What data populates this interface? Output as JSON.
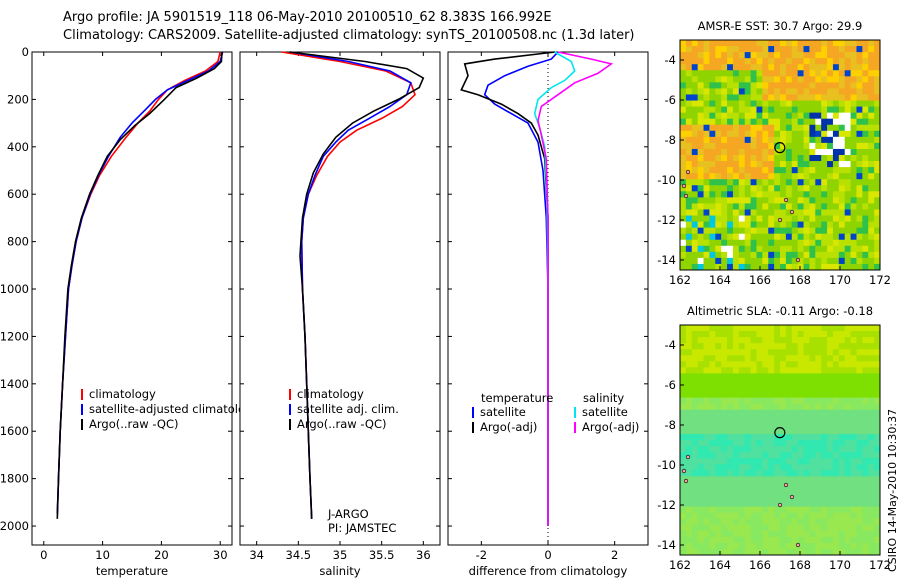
{
  "header": {
    "line1": "Argo profile: JA 5901519_118 06-May-2010 20100510_62 8.383S 166.992E",
    "line2": "Climatology: CARS2009. Satellite-adjusted climatology: synTS_20100508.nc (1.3d later)"
  },
  "credit": "CSIRO 14-May-2010 10:30:37",
  "colors": {
    "climatology": "#ff0000",
    "satellite": "#0000ff",
    "argo": "#000000",
    "sat_diff": "#00e5ee",
    "argo_adj": "#ff00ff"
  },
  "chart_data": [
    {
      "type": "line",
      "xlabel": "temperature",
      "ylabel": "",
      "xlim": [
        -2,
        32
      ],
      "ylim": [
        2080,
        0
      ],
      "y_reversed": true,
      "xticks": [
        0,
        10,
        20,
        30
      ],
      "yticks": [
        0,
        200,
        400,
        600,
        800,
        1000,
        1200,
        1400,
        1600,
        1800,
        2000
      ],
      "legend": [
        "climatology",
        "satellite-adjusted climatology",
        "Argo(..raw -QC)"
      ],
      "series": [
        {
          "name": "climatology",
          "color": "#ff0000",
          "points": [
            [
              30.0,
              0
            ],
            [
              29.6,
              40
            ],
            [
              27.5,
              80
            ],
            [
              24,
              120
            ],
            [
              21,
              160
            ],
            [
              19.5,
              200
            ],
            [
              18,
              250
            ],
            [
              16,
              300
            ],
            [
              14,
              360
            ],
            [
              11.5,
              440
            ],
            [
              9.5,
              520
            ],
            [
              8,
              600
            ],
            [
              6.5,
              700
            ],
            [
              5.5,
              800
            ],
            [
              4.8,
              900
            ],
            [
              4.2,
              1000
            ],
            [
              3.7,
              1200
            ],
            [
              3.2,
              1400
            ],
            [
              2.8,
              1600
            ],
            [
              2.5,
              1800
            ],
            [
              2.3,
              1950
            ]
          ]
        },
        {
          "name": "satellite-adjusted climatology",
          "color": "#0000ff",
          "points": [
            [
              30.4,
              0
            ],
            [
              30,
              40
            ],
            [
              28,
              80
            ],
            [
              24.5,
              120
            ],
            [
              21,
              160
            ],
            [
              19,
              200
            ],
            [
              17,
              250
            ],
            [
              15,
              300
            ],
            [
              13,
              360
            ],
            [
              11,
              440
            ],
            [
              9.3,
              520
            ],
            [
              7.9,
              600
            ],
            [
              6.5,
              700
            ],
            [
              5.5,
              800
            ],
            [
              4.8,
              900
            ],
            [
              4.2,
              1000
            ],
            [
              3.7,
              1200
            ],
            [
              3.2,
              1400
            ],
            [
              2.8,
              1600
            ],
            [
              2.5,
              1800
            ],
            [
              2.3,
              1950
            ]
          ]
        },
        {
          "name": "Argo(..raw -QC)",
          "color": "#000000",
          "points": [
            [
              30.3,
              0
            ],
            [
              30.2,
              40
            ],
            [
              29,
              70
            ],
            [
              26,
              110
            ],
            [
              22.5,
              150
            ],
            [
              20.5,
              200
            ],
            [
              18,
              260
            ],
            [
              15.5,
              310
            ],
            [
              13,
              370
            ],
            [
              10.8,
              440
            ],
            [
              9.2,
              520
            ],
            [
              7.8,
              600
            ],
            [
              6.4,
              700
            ],
            [
              5.4,
              800
            ],
            [
              4.7,
              900
            ],
            [
              4.1,
              1000
            ],
            [
              3.6,
              1200
            ],
            [
              3.2,
              1400
            ],
            [
              2.8,
              1600
            ],
            [
              2.5,
              1800
            ],
            [
              2.3,
              1970
            ]
          ]
        }
      ]
    },
    {
      "type": "line",
      "xlabel": "salinity",
      "ylabel": "",
      "xlim": [
        33.8,
        36.2
      ],
      "ylim": [
        2080,
        0
      ],
      "y_reversed": true,
      "xticks": [
        34,
        34.5,
        35,
        35.5,
        36
      ],
      "yticks": [
        0,
        200,
        400,
        600,
        800,
        1000,
        1200,
        1400,
        1600,
        1800,
        2000
      ],
      "legend": [
        "climatology",
        "satellite adj. clim.",
        "Argo(..raw -QC)"
      ],
      "annotations": [
        "J-ARGO",
        "PI: JAMSTEC"
      ],
      "series": [
        {
          "name": "climatology",
          "color": "#ff0000",
          "points": [
            [
              34.3,
              0
            ],
            [
              35.0,
              40
            ],
            [
              35.55,
              80
            ],
            [
              35.85,
              130
            ],
            [
              35.9,
              180
            ],
            [
              35.75,
              230
            ],
            [
              35.5,
              280
            ],
            [
              35.2,
              330
            ],
            [
              35.0,
              380
            ],
            [
              34.85,
              440
            ],
            [
              34.72,
              520
            ],
            [
              34.62,
              600
            ],
            [
              34.56,
              700
            ],
            [
              34.54,
              800
            ],
            [
              34.55,
              1000
            ],
            [
              34.58,
              1200
            ],
            [
              34.6,
              1400
            ],
            [
              34.62,
              1600
            ],
            [
              34.64,
              1800
            ],
            [
              34.66,
              1970
            ]
          ]
        },
        {
          "name": "satellite adj. clim.",
          "color": "#0000ff",
          "points": [
            [
              34.4,
              0
            ],
            [
              35.1,
              40
            ],
            [
              35.6,
              80
            ],
            [
              35.85,
              130
            ],
            [
              35.8,
              180
            ],
            [
              35.6,
              230
            ],
            [
              35.35,
              280
            ],
            [
              35.1,
              330
            ],
            [
              34.95,
              380
            ],
            [
              34.8,
              440
            ],
            [
              34.7,
              520
            ],
            [
              34.62,
              600
            ],
            [
              34.56,
              700
            ],
            [
              34.54,
              800
            ],
            [
              34.55,
              1000
            ],
            [
              34.58,
              1200
            ],
            [
              34.6,
              1400
            ],
            [
              34.62,
              1600
            ],
            [
              34.64,
              1800
            ],
            [
              34.66,
              1970
            ]
          ]
        },
        {
          "name": "Argo(..raw -QC)",
          "color": "#000000",
          "points": [
            [
              34.4,
              0
            ],
            [
              35.3,
              40
            ],
            [
              35.8,
              70
            ],
            [
              36.0,
              110
            ],
            [
              35.95,
              150
            ],
            [
              35.7,
              200
            ],
            [
              35.4,
              250
            ],
            [
              35.15,
              300
            ],
            [
              34.95,
              360
            ],
            [
              34.8,
              430
            ],
            [
              34.68,
              510
            ],
            [
              34.6,
              600
            ],
            [
              34.55,
              700
            ],
            [
              34.52,
              860
            ],
            [
              34.55,
              1000
            ],
            [
              34.58,
              1200
            ],
            [
              34.6,
              1400
            ],
            [
              34.62,
              1600
            ],
            [
              34.64,
              1800
            ],
            [
              34.66,
              1970
            ]
          ]
        }
      ]
    },
    {
      "type": "line",
      "xlabel": "difference from climatology",
      "ylabel": "",
      "xlim": [
        -3,
        3
      ],
      "ylim": [
        2080,
        0
      ],
      "y_reversed": true,
      "xticks": [
        -2,
        0,
        2
      ],
      "yticks": [
        0,
        200,
        400,
        600,
        800,
        1000,
        1200,
        1400,
        1600,
        1800,
        2000
      ],
      "legend": {
        "temperature": [
          "satellite",
          "Argo(-adj)"
        ],
        "salinity": [
          "satellite",
          "Argo(-adj)"
        ]
      },
      "series": [
        {
          "name": "temperature satellite",
          "color": "#0000ff",
          "points": [
            [
              0.3,
              0
            ],
            [
              0.1,
              30
            ],
            [
              -0.6,
              60
            ],
            [
              -1.3,
              100
            ],
            [
              -1.8,
              140
            ],
            [
              -1.9,
              180
            ],
            [
              -1.6,
              220
            ],
            [
              -1.1,
              260
            ],
            [
              -0.6,
              300
            ],
            [
              -0.3,
              380
            ],
            [
              -0.15,
              500
            ],
            [
              -0.05,
              700
            ],
            [
              0,
              1000
            ],
            [
              0,
              2000
            ]
          ]
        },
        {
          "name": "temperature Argo(-adj)",
          "color": "#000000",
          "points": [
            [
              0.2,
              0
            ],
            [
              -1.6,
              30
            ],
            [
              -2.5,
              50
            ],
            [
              -2.4,
              100
            ],
            [
              -2.6,
              160
            ],
            [
              -2.1,
              180
            ],
            [
              -1.4,
              220
            ],
            [
              -0.9,
              260
            ],
            [
              -0.5,
              300
            ],
            [
              -0.3,
              350
            ],
            [
              -0.1,
              450
            ],
            [
              0,
              700
            ],
            [
              0,
              2000
            ]
          ]
        },
        {
          "name": "salinity satellite",
          "color": "#00e5ee",
          "points": [
            [
              0.2,
              0
            ],
            [
              0.7,
              40
            ],
            [
              0.8,
              80
            ],
            [
              0.5,
              120
            ],
            [
              0.1,
              150
            ],
            [
              -0.3,
              200
            ],
            [
              -0.4,
              260
            ],
            [
              -0.25,
              320
            ],
            [
              -0.1,
              400
            ],
            [
              -0.03,
              600
            ],
            [
              0,
              1000
            ],
            [
              0,
              2000
            ]
          ]
        },
        {
          "name": "salinity Argo(-adj)",
          "color": "#ff00ff",
          "points": [
            [
              0.3,
              0
            ],
            [
              1.3,
              30
            ],
            [
              1.9,
              50
            ],
            [
              1.5,
              90
            ],
            [
              0.8,
              130
            ],
            [
              0.3,
              180
            ],
            [
              -0.2,
              230
            ],
            [
              -0.3,
              290
            ],
            [
              -0.2,
              350
            ],
            [
              -0.05,
              450
            ],
            [
              0,
              700
            ],
            [
              0,
              2000
            ]
          ]
        }
      ]
    },
    {
      "type": "heatmap",
      "title": "AMSR-E SST: 30.7 Argo: 29.9",
      "xlim": [
        162,
        172
      ],
      "ylim": [
        -14.5,
        -3
      ],
      "xticks": [
        162,
        164,
        166,
        168,
        170,
        172
      ],
      "yticks": [
        -4,
        -6,
        -8,
        -10,
        -12,
        -14
      ],
      "marker": {
        "lon": 166.992,
        "lat": -8.383
      }
    },
    {
      "type": "heatmap",
      "title": "Altimetric SLA: -0.11 Argo: -0.18",
      "xlim": [
        162,
        172
      ],
      "ylim": [
        -14.5,
        -3
      ],
      "xticks": [
        162,
        164,
        166,
        168,
        170,
        172
      ],
      "yticks": [
        -4,
        -6,
        -8,
        -10,
        -12,
        -14
      ],
      "marker": {
        "lon": 166.992,
        "lat": -8.383
      }
    }
  ]
}
